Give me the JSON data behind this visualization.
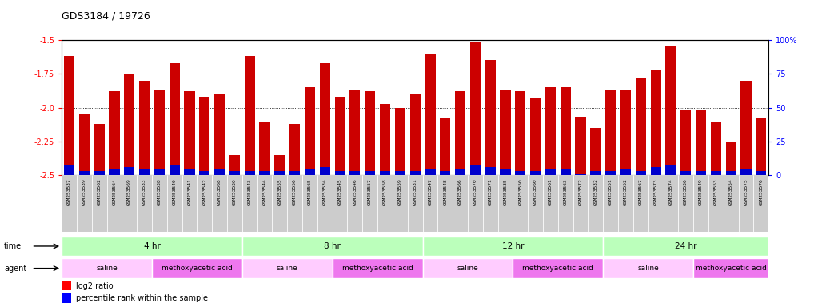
{
  "title": "GDS3184 / 19726",
  "samples": [
    "GSM253537",
    "GSM253539",
    "GSM253562",
    "GSM253564",
    "GSM253569",
    "GSM253533",
    "GSM253538",
    "GSM253540",
    "GSM253541",
    "GSM253542",
    "GSM253568",
    "GSM253530",
    "GSM253543",
    "GSM253544",
    "GSM253555",
    "GSM253556",
    "GSM253565",
    "GSM253534",
    "GSM253545",
    "GSM253546",
    "GSM253557",
    "GSM253558",
    "GSM253559",
    "GSM253531",
    "GSM253547",
    "GSM253548",
    "GSM253566",
    "GSM253570",
    "GSM253571",
    "GSM253535",
    "GSM253550",
    "GSM253560",
    "GSM253561",
    "GSM253563",
    "GSM253572",
    "GSM253532",
    "GSM253551",
    "GSM253552",
    "GSM253567",
    "GSM253573",
    "GSM253574",
    "GSM253536",
    "GSM253549",
    "GSM253553",
    "GSM253554",
    "GSM253575",
    "GSM253576"
  ],
  "log2_ratio": [
    -1.62,
    -2.05,
    -2.12,
    -1.88,
    -1.75,
    -1.8,
    -1.87,
    -1.67,
    -1.88,
    -1.92,
    -1.9,
    -2.35,
    -1.62,
    -2.1,
    -2.35,
    -2.12,
    -1.85,
    -1.67,
    -1.92,
    -1.87,
    -1.88,
    -1.97,
    -2.0,
    -1.9,
    -1.6,
    -2.08,
    -1.88,
    -1.52,
    -1.65,
    -1.87,
    -1.88,
    -1.93,
    -1.85,
    -1.85,
    -2.07,
    -2.15,
    -1.87,
    -1.87,
    -1.78,
    -1.72,
    -1.55,
    -2.02,
    -2.02,
    -2.1,
    -2.25,
    -1.8,
    -2.08
  ],
  "percentile_rank": [
    8,
    3,
    3,
    4,
    6,
    5,
    4,
    8,
    4,
    3,
    4,
    3,
    3,
    3,
    3,
    3,
    4,
    6,
    3,
    3,
    3,
    3,
    3,
    3,
    5,
    3,
    4,
    8,
    6,
    4,
    3,
    3,
    4,
    4,
    1,
    3,
    3,
    4,
    3,
    6,
    8,
    3,
    3,
    3,
    3,
    4,
    3
  ],
  "time_groups": [
    {
      "label": "4 hr",
      "start": 0,
      "end": 11,
      "color": "#bbffbb"
    },
    {
      "label": "8 hr",
      "start": 12,
      "end": 23,
      "color": "#bbffbb"
    },
    {
      "label": "12 hr",
      "start": 24,
      "end": 35,
      "color": "#bbffbb"
    },
    {
      "label": "24 hr",
      "start": 36,
      "end": 46,
      "color": "#bbffbb"
    }
  ],
  "agent_groups": [
    {
      "label": "saline",
      "start": 0,
      "end": 5,
      "color": "#ffccff"
    },
    {
      "label": "methoxyacetic acid",
      "start": 6,
      "end": 11,
      "color": "#ee77ee"
    },
    {
      "label": "saline",
      "start": 12,
      "end": 17,
      "color": "#ffccff"
    },
    {
      "label": "methoxyacetic acid",
      "start": 18,
      "end": 23,
      "color": "#ee77ee"
    },
    {
      "label": "saline",
      "start": 24,
      "end": 29,
      "color": "#ffccff"
    },
    {
      "label": "methoxyacetic acid",
      "start": 30,
      "end": 35,
      "color": "#ee77ee"
    },
    {
      "label": "saline",
      "start": 36,
      "end": 41,
      "color": "#ffccff"
    },
    {
      "label": "methoxyacetic acid",
      "start": 42,
      "end": 46,
      "color": "#ee77ee"
    }
  ],
  "ylim_left": [
    -2.5,
    -1.5
  ],
  "ylim_right": [
    0,
    100
  ],
  "yticks_left": [
    -2.5,
    -2.25,
    -2.0,
    -1.75,
    -1.5
  ],
  "yticks_right": [
    0,
    25,
    50,
    75,
    100
  ],
  "grid_values": [
    -1.75,
    -2.0,
    -2.25
  ],
  "bar_color": "#cc0000",
  "percentile_color": "#0000cc",
  "background_color": "#ffffff",
  "tick_bg_color": "#cccccc"
}
